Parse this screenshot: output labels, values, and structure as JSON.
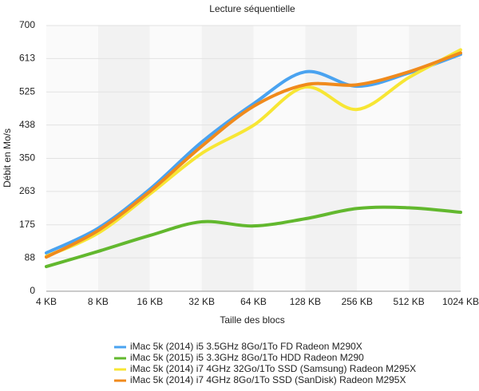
{
  "chart_data": {
    "type": "line",
    "title": "Lecture séquentielle",
    "x_label": "Taille des blocs",
    "y_label": "Débit en Mo/s",
    "categories": [
      "4 KB",
      "8 KB",
      "16 KB",
      "32 KB",
      "64 KB",
      "128 KB",
      "256 KB",
      "512 KB",
      "1024 KB"
    ],
    "ylim": [
      0,
      700
    ],
    "yticks": [
      0,
      88,
      175,
      263,
      350,
      438,
      525,
      613,
      700
    ],
    "series": [
      {
        "name": "iMac 5k (2014) i5 3.5GHz 8Go/1To FD Radeon M290X",
        "color": "#4aa3f0",
        "values": [
          101,
          166,
          269,
          393,
          494,
          578,
          540,
          575,
          624
        ]
      },
      {
        "name": "iMac 5k (2015) i5 3.3GHz 8Go/1To HDD Radeon M290",
        "color": "#62b82e",
        "values": [
          65,
          105,
          147,
          183,
          172,
          191,
          218,
          220,
          208
        ]
      },
      {
        "name": "iMac 5k (2014) i7 4GHz 32Go/1To SSD (Samsung) Radeon M295X",
        "color": "#f7e634",
        "values": [
          92,
          153,
          256,
          363,
          437,
          538,
          479,
          563,
          636
        ]
      },
      {
        "name": "iMac 5k (2014) i7 4GHz 8Go/1To SSD (SanDisk) Radeon M295X",
        "color": "#f08a1c",
        "values": [
          90,
          160,
          263,
          382,
          487,
          544,
          544,
          578,
          628
        ]
      }
    ]
  }
}
